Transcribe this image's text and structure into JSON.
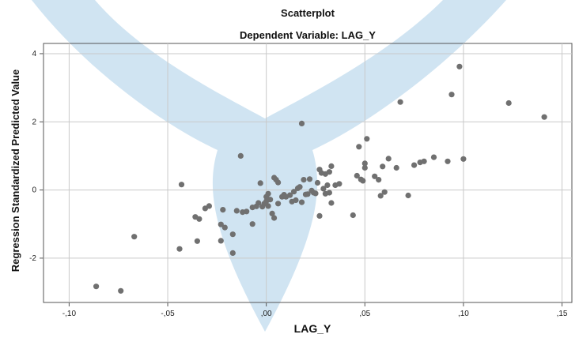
{
  "chart_data": {
    "type": "scatter",
    "title": "Scatterplot",
    "subtitle": "Dependent Variable: LAG_Y",
    "xlabel": "LAG_Y",
    "ylabel": "Regression Standardized Predicted Value",
    "xlim": [
      -0.113,
      0.155
    ],
    "ylim": [
      -3.3,
      4.3
    ],
    "grid": true,
    "xticks": [
      {
        "value": -0.1,
        "label": "-,10"
      },
      {
        "value": -0.05,
        "label": "-,05"
      },
      {
        "value": 0.0,
        "label": ",00"
      },
      {
        "value": 0.05,
        "label": ",05"
      },
      {
        "value": 0.1,
        "label": ",10"
      },
      {
        "value": 0.15,
        "label": ",15"
      }
    ],
    "yticks": [
      {
        "value": -2,
        "label": "-2"
      },
      {
        "value": 0,
        "label": "0"
      },
      {
        "value": 2,
        "label": "2"
      },
      {
        "value": 4,
        "label": "4"
      }
    ],
    "point_color": "#707070",
    "watermark_color": "#c8dff0",
    "points": [
      [
        -0.0863,
        -2.83
      ],
      [
        -0.0738,
        -2.96
      ],
      [
        -0.067,
        -1.37
      ],
      [
        -0.044,
        -1.73
      ],
      [
        -0.043,
        0.16
      ],
      [
        -0.035,
        -1.5
      ],
      [
        -0.036,
        -0.79
      ],
      [
        -0.034,
        -0.85
      ],
      [
        -0.031,
        -0.54
      ],
      [
        -0.029,
        -0.47
      ],
      [
        -0.023,
        -1.01
      ],
      [
        -0.022,
        -0.58
      ],
      [
        -0.021,
        -1.1
      ],
      [
        -0.023,
        -1.49
      ],
      [
        -0.017,
        -1.85
      ],
      [
        -0.017,
        -1.3
      ],
      [
        -0.015,
        -0.61
      ],
      [
        -0.012,
        -0.65
      ],
      [
        -0.01,
        -0.63
      ],
      [
        -0.007,
        -1.0
      ],
      [
        -0.007,
        -0.51
      ],
      [
        -0.005,
        -0.48
      ],
      [
        -0.004,
        -0.38
      ],
      [
        -0.003,
        0.2
      ],
      [
        -0.013,
        1.0
      ],
      [
        -0.002,
        -0.49
      ],
      [
        -0.001,
        -0.4
      ],
      [
        0.0,
        -0.33
      ],
      [
        0.0,
        -0.2
      ],
      [
        0.001,
        -0.11
      ],
      [
        0.001,
        -0.47
      ],
      [
        0.002,
        -0.28
      ],
      [
        0.003,
        -0.69
      ],
      [
        0.004,
        -0.82
      ],
      [
        0.004,
        0.36
      ],
      [
        0.005,
        0.3
      ],
      [
        0.006,
        0.22
      ],
      [
        0.006,
        -0.4
      ],
      [
        0.008,
        -0.2
      ],
      [
        0.009,
        -0.14
      ],
      [
        0.01,
        -0.2
      ],
      [
        0.012,
        -0.15
      ],
      [
        0.013,
        -0.34
      ],
      [
        0.014,
        -0.05
      ],
      [
        0.015,
        -0.3
      ],
      [
        0.016,
        0.05
      ],
      [
        0.017,
        0.09
      ],
      [
        0.018,
        -0.36
      ],
      [
        0.019,
        0.3
      ],
      [
        0.02,
        -0.13
      ],
      [
        0.021,
        -0.12
      ],
      [
        0.022,
        0.32
      ],
      [
        0.023,
        -0.02
      ],
      [
        0.024,
        -0.08
      ],
      [
        0.025,
        -0.1
      ],
      [
        0.026,
        0.21
      ],
      [
        0.027,
        0.6
      ],
      [
        0.027,
        -0.76
      ],
      [
        0.028,
        0.5
      ],
      [
        0.029,
        0.04
      ],
      [
        0.03,
        -0.11
      ],
      [
        0.03,
        0.47
      ],
      [
        0.031,
        0.14
      ],
      [
        0.032,
        0.53
      ],
      [
        0.032,
        -0.08
      ],
      [
        0.033,
        0.7
      ],
      [
        0.033,
        -0.38
      ],
      [
        0.035,
        0.14
      ],
      [
        0.037,
        0.18
      ],
      [
        0.018,
        1.95
      ],
      [
        0.044,
        -0.74
      ],
      [
        0.046,
        0.42
      ],
      [
        0.047,
        1.27
      ],
      [
        0.048,
        0.31
      ],
      [
        0.049,
        0.27
      ],
      [
        0.05,
        0.78
      ],
      [
        0.05,
        0.65
      ],
      [
        0.051,
        1.5
      ],
      [
        0.055,
        0.4
      ],
      [
        0.057,
        0.3
      ],
      [
        0.058,
        -0.17
      ],
      [
        0.059,
        0.69
      ],
      [
        0.06,
        -0.06
      ],
      [
        0.062,
        0.92
      ],
      [
        0.066,
        0.65
      ],
      [
        0.068,
        2.58
      ],
      [
        0.072,
        -0.16
      ],
      [
        0.075,
        0.73
      ],
      [
        0.078,
        0.81
      ],
      [
        0.08,
        0.84
      ],
      [
        0.085,
        0.96
      ],
      [
        0.092,
        0.84
      ],
      [
        0.094,
        2.8
      ],
      [
        0.098,
        3.62
      ],
      [
        0.1,
        0.91
      ],
      [
        0.123,
        2.55
      ],
      [
        0.141,
        2.14
      ]
    ]
  }
}
